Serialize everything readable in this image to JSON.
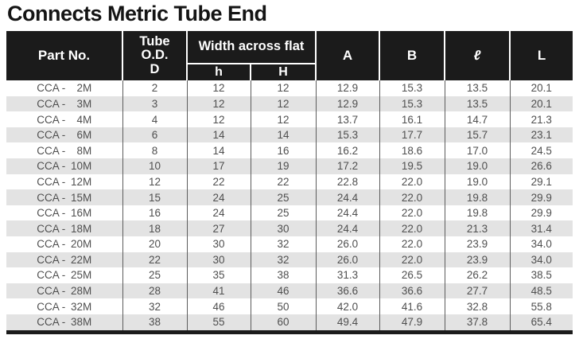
{
  "title": "Connects Metric Tube End",
  "colors": {
    "header_bg": "#1b1b1b",
    "row_alt": "#e3e3e3",
    "body_text": "#4f4f4f",
    "divider": "#5c5c5c"
  },
  "table": {
    "headers": {
      "part_no": "Part No.",
      "tube_od_line1": "Tube",
      "tube_od_line2": "O.D.",
      "tube_od_line3": "D",
      "width_across_flat": "Width across flat",
      "sub_h": "h",
      "sub_hh": "H",
      "col_a": "A",
      "col_b": "B",
      "col_ell": "ℓ",
      "col_l": "L"
    },
    "rows": [
      {
        "part_prefix": "CCA -",
        "part_num": "2M",
        "d": "2",
        "h": "12",
        "hh": "12",
        "a": "12.9",
        "b": "15.3",
        "ell": "13.5",
        "l": "20.1"
      },
      {
        "part_prefix": "CCA -",
        "part_num": "3M",
        "d": "3",
        "h": "12",
        "hh": "12",
        "a": "12.9",
        "b": "15.3",
        "ell": "13.5",
        "l": "20.1"
      },
      {
        "part_prefix": "CCA -",
        "part_num": "4M",
        "d": "4",
        "h": "12",
        "hh": "12",
        "a": "13.7",
        "b": "16.1",
        "ell": "14.7",
        "l": "21.3"
      },
      {
        "part_prefix": "CCA -",
        "part_num": "6M",
        "d": "6",
        "h": "14",
        "hh": "14",
        "a": "15.3",
        "b": "17.7",
        "ell": "15.7",
        "l": "23.1"
      },
      {
        "part_prefix": "CCA -",
        "part_num": "8M",
        "d": "8",
        "h": "14",
        "hh": "16",
        "a": "16.2",
        "b": "18.6",
        "ell": "17.0",
        "l": "24.5"
      },
      {
        "part_prefix": "CCA -",
        "part_num": "10M",
        "d": "10",
        "h": "17",
        "hh": "19",
        "a": "17.2",
        "b": "19.5",
        "ell": "19.0",
        "l": "26.6"
      },
      {
        "part_prefix": "CCA -",
        "part_num": "12M",
        "d": "12",
        "h": "22",
        "hh": "22",
        "a": "22.8",
        "b": "22.0",
        "ell": "19.0",
        "l": "29.1"
      },
      {
        "part_prefix": "CCA -",
        "part_num": "15M",
        "d": "15",
        "h": "24",
        "hh": "25",
        "a": "24.4",
        "b": "22.0",
        "ell": "19.8",
        "l": "29.9"
      },
      {
        "part_prefix": "CCA -",
        "part_num": "16M",
        "d": "16",
        "h": "24",
        "hh": "25",
        "a": "24.4",
        "b": "22.0",
        "ell": "19.8",
        "l": "29.9"
      },
      {
        "part_prefix": "CCA -",
        "part_num": "18M",
        "d": "18",
        "h": "27",
        "hh": "30",
        "a": "24.4",
        "b": "22.0",
        "ell": "21.3",
        "l": "31.4"
      },
      {
        "part_prefix": "CCA -",
        "part_num": "20M",
        "d": "20",
        "h": "30",
        "hh": "32",
        "a": "26.0",
        "b": "22.0",
        "ell": "23.9",
        "l": "34.0"
      },
      {
        "part_prefix": "CCA -",
        "part_num": "22M",
        "d": "22",
        "h": "30",
        "hh": "32",
        "a": "26.0",
        "b": "22.0",
        "ell": "23.9",
        "l": "34.0"
      },
      {
        "part_prefix": "CCA -",
        "part_num": "25M",
        "d": "25",
        "h": "35",
        "hh": "38",
        "a": "31.3",
        "b": "26.5",
        "ell": "26.2",
        "l": "38.5"
      },
      {
        "part_prefix": "CCA -",
        "part_num": "28M",
        "d": "28",
        "h": "41",
        "hh": "46",
        "a": "36.6",
        "b": "36.6",
        "ell": "27.7",
        "l": "48.5"
      },
      {
        "part_prefix": "CCA -",
        "part_num": "32M",
        "d": "32",
        "h": "46",
        "hh": "50",
        "a": "42.0",
        "b": "41.6",
        "ell": "32.8",
        "l": "55.8"
      },
      {
        "part_prefix": "CCA -",
        "part_num": "38M",
        "d": "38",
        "h": "55",
        "hh": "60",
        "a": "49.4",
        "b": "47.9",
        "ell": "37.8",
        "l": "65.4"
      }
    ]
  }
}
